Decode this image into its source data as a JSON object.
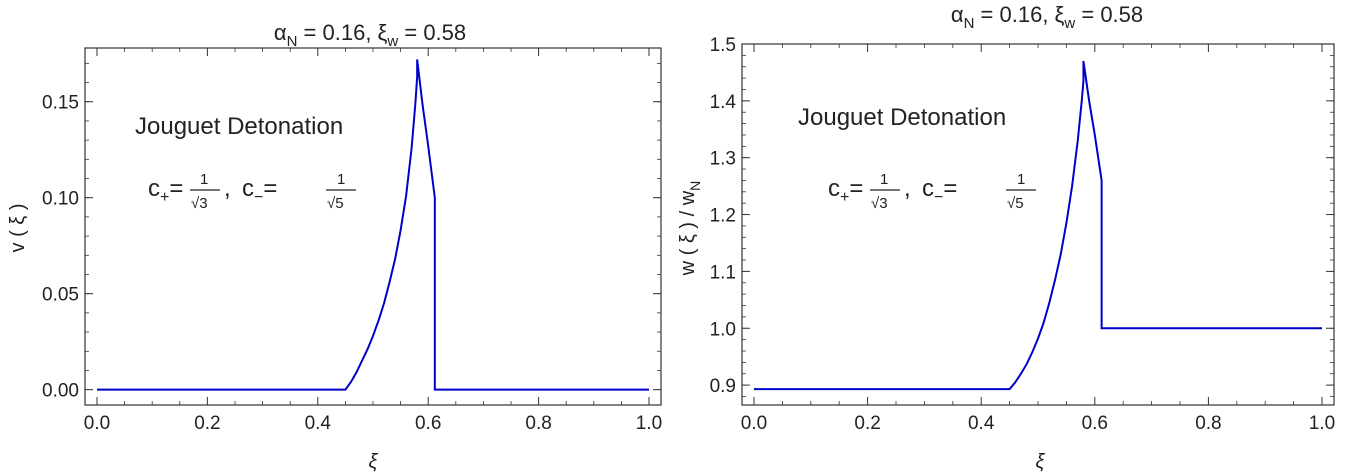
{
  "chart_data": [
    {
      "type": "line",
      "title": "α_N = 0.16, ξ_w = 0.58",
      "title_parts": {
        "alpha": "α",
        "alpha_sub": "N",
        "alpha_val": " = 0.16, ",
        "xi": "ξ",
        "xi_sub": "w",
        "xi_val": " = 0.58"
      },
      "xlabel": "ξ",
      "ylabel": "v ( ξ )",
      "xlim": [
        0.0,
        1.0
      ],
      "ylim": [
        -0.008,
        0.178
      ],
      "xticks": [
        "0.0",
        "0.2",
        "0.4",
        "0.6",
        "0.8",
        "1.0"
      ],
      "yticks": [
        "0.00",
        "0.05",
        "0.10",
        "0.15"
      ],
      "annotation": "Jouguet Detonation",
      "speeds": {
        "cp": "c",
        "cp_sub": "+",
        "cm": "c",
        "cm_sub": "−",
        "eq": "=",
        "num": "1",
        "rad_p": "√3",
        "rad_m": "√5",
        "sep": ","
      },
      "grid": false,
      "color": "#0000cc",
      "series": [
        {
          "x": [
            0.0,
            0.45,
            0.46,
            0.47,
            0.48,
            0.49,
            0.5,
            0.51,
            0.52,
            0.53,
            0.54,
            0.55,
            0.56,
            0.57,
            0.577,
            0.58,
            0.58,
            0.59,
            0.6,
            0.612,
            0.612,
            1.0
          ],
          "y": [
            0.0,
            0.0,
            0.004,
            0.009,
            0.015,
            0.021,
            0.028,
            0.036,
            0.045,
            0.056,
            0.068,
            0.083,
            0.101,
            0.126,
            0.15,
            0.163,
            0.172,
            0.148,
            0.127,
            0.1,
            0.0,
            0.0
          ]
        }
      ]
    },
    {
      "type": "line",
      "title": "α_N = 0.16, ξ_w = 0.58",
      "title_parts": {
        "alpha": "α",
        "alpha_sub": "N",
        "alpha_val": " = 0.16, ",
        "xi": "ξ",
        "xi_sub": "w",
        "xi_val": " = 0.58"
      },
      "xlabel": "ξ",
      "ylabel": "w ( ξ ) / w_N",
      "ylabel_parts": {
        "main": "w ( ξ ) / w",
        "sub": "N"
      },
      "xlim": [
        0.0,
        1.0
      ],
      "ylim": [
        0.865,
        1.5
      ],
      "xticks": [
        "0.0",
        "0.2",
        "0.4",
        "0.6",
        "0.8",
        "1.0"
      ],
      "yticks": [
        "0.9",
        "1.0",
        "1.1",
        "1.2",
        "1.3",
        "1.4",
        "1.5"
      ],
      "annotation": "Jouguet Detonation",
      "speeds": {
        "cp": "c",
        "cp_sub": "+",
        "cm": "c",
        "cm_sub": "−",
        "eq": "=",
        "num": "1",
        "rad_p": "√3",
        "rad_m": "√5",
        "sep": ","
      },
      "grid": false,
      "color": "#0000cc",
      "series": [
        {
          "x": [
            0.0,
            0.45,
            0.46,
            0.47,
            0.48,
            0.49,
            0.5,
            0.51,
            0.52,
            0.53,
            0.54,
            0.55,
            0.56,
            0.57,
            0.577,
            0.58,
            0.58,
            0.59,
            0.6,
            0.612,
            0.612,
            1.0
          ],
          "y": [
            0.893,
            0.893,
            0.905,
            0.92,
            0.937,
            0.958,
            0.982,
            1.01,
            1.045,
            1.085,
            1.13,
            1.185,
            1.25,
            1.33,
            1.4,
            1.435,
            1.47,
            1.4,
            1.34,
            1.26,
            1.0,
            1.0
          ]
        }
      ]
    }
  ]
}
